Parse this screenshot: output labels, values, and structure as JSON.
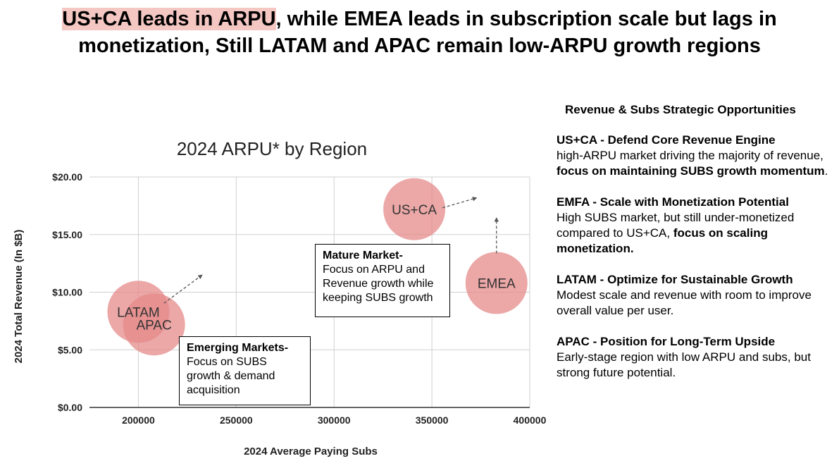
{
  "headline": {
    "highlight": "US+CA leads in ARPU",
    "rest": ", while EMEA leads in subscription scale but lags in monetization, Still LATAM and APAC remain low-ARPU growth regions"
  },
  "chart_data": {
    "type": "scatter",
    "title": "2024 ARPU* by Region",
    "xlabel": "2024 Average Paying Subs",
    "ylabel": "2024 Total Revenue (In $B)",
    "xlim": [
      175000,
      400000
    ],
    "ylim": [
      0,
      20
    ],
    "x_ticks": [
      "200000",
      "250000",
      "300000",
      "350000",
      "400000"
    ],
    "y_ticks": [
      "$0.00",
      "$5.00",
      "$10.00",
      "$15.00",
      "$20.00"
    ],
    "grid": true,
    "bubble_color": "#e68a8a",
    "points": [
      {
        "label": "LATAM",
        "x": 200000,
        "y": 8.3
      },
      {
        "label": "APAC",
        "x": 208000,
        "y": 7.2
      },
      {
        "label": "US+CA",
        "x": 341000,
        "y": 17.2
      },
      {
        "label": "EMEA",
        "x": 383000,
        "y": 10.8
      }
    ],
    "annotations": [
      {
        "title": "Mature Market-",
        "text": "Focus on ARPU and Revenue growth while keeping SUBS growth"
      },
      {
        "title": "Emerging Markets-",
        "text": "Focus on SUBS growth & demand acquisition"
      }
    ]
  },
  "sidebar": {
    "title": "Revenue & Subs Strategic Opportunities",
    "items": [
      {
        "title": "US+CA - Defend Core Revenue Engine",
        "text": "high-ARPU market driving the majority of revenue, ",
        "bold": "focus on maintaining SUBS growth momentum",
        "tail": "."
      },
      {
        "title": "EMFA - Scale with Monetization Potential",
        "text": "High SUBS market, but still under-monetized compared to US+CA, ",
        "bold": "focus on scaling monetization.",
        "tail": ""
      },
      {
        "title": "LATAM - Optimize for Sustainable Growth",
        "text": "Modest scale and revenue with room to improve overall value per user.",
        "bold": "",
        "tail": ""
      },
      {
        "title": "APAC - Position for Long-Term Upside",
        "text": "Early-stage region with low ARPU and subs, but strong future potential.",
        "bold": "",
        "tail": ""
      }
    ]
  }
}
